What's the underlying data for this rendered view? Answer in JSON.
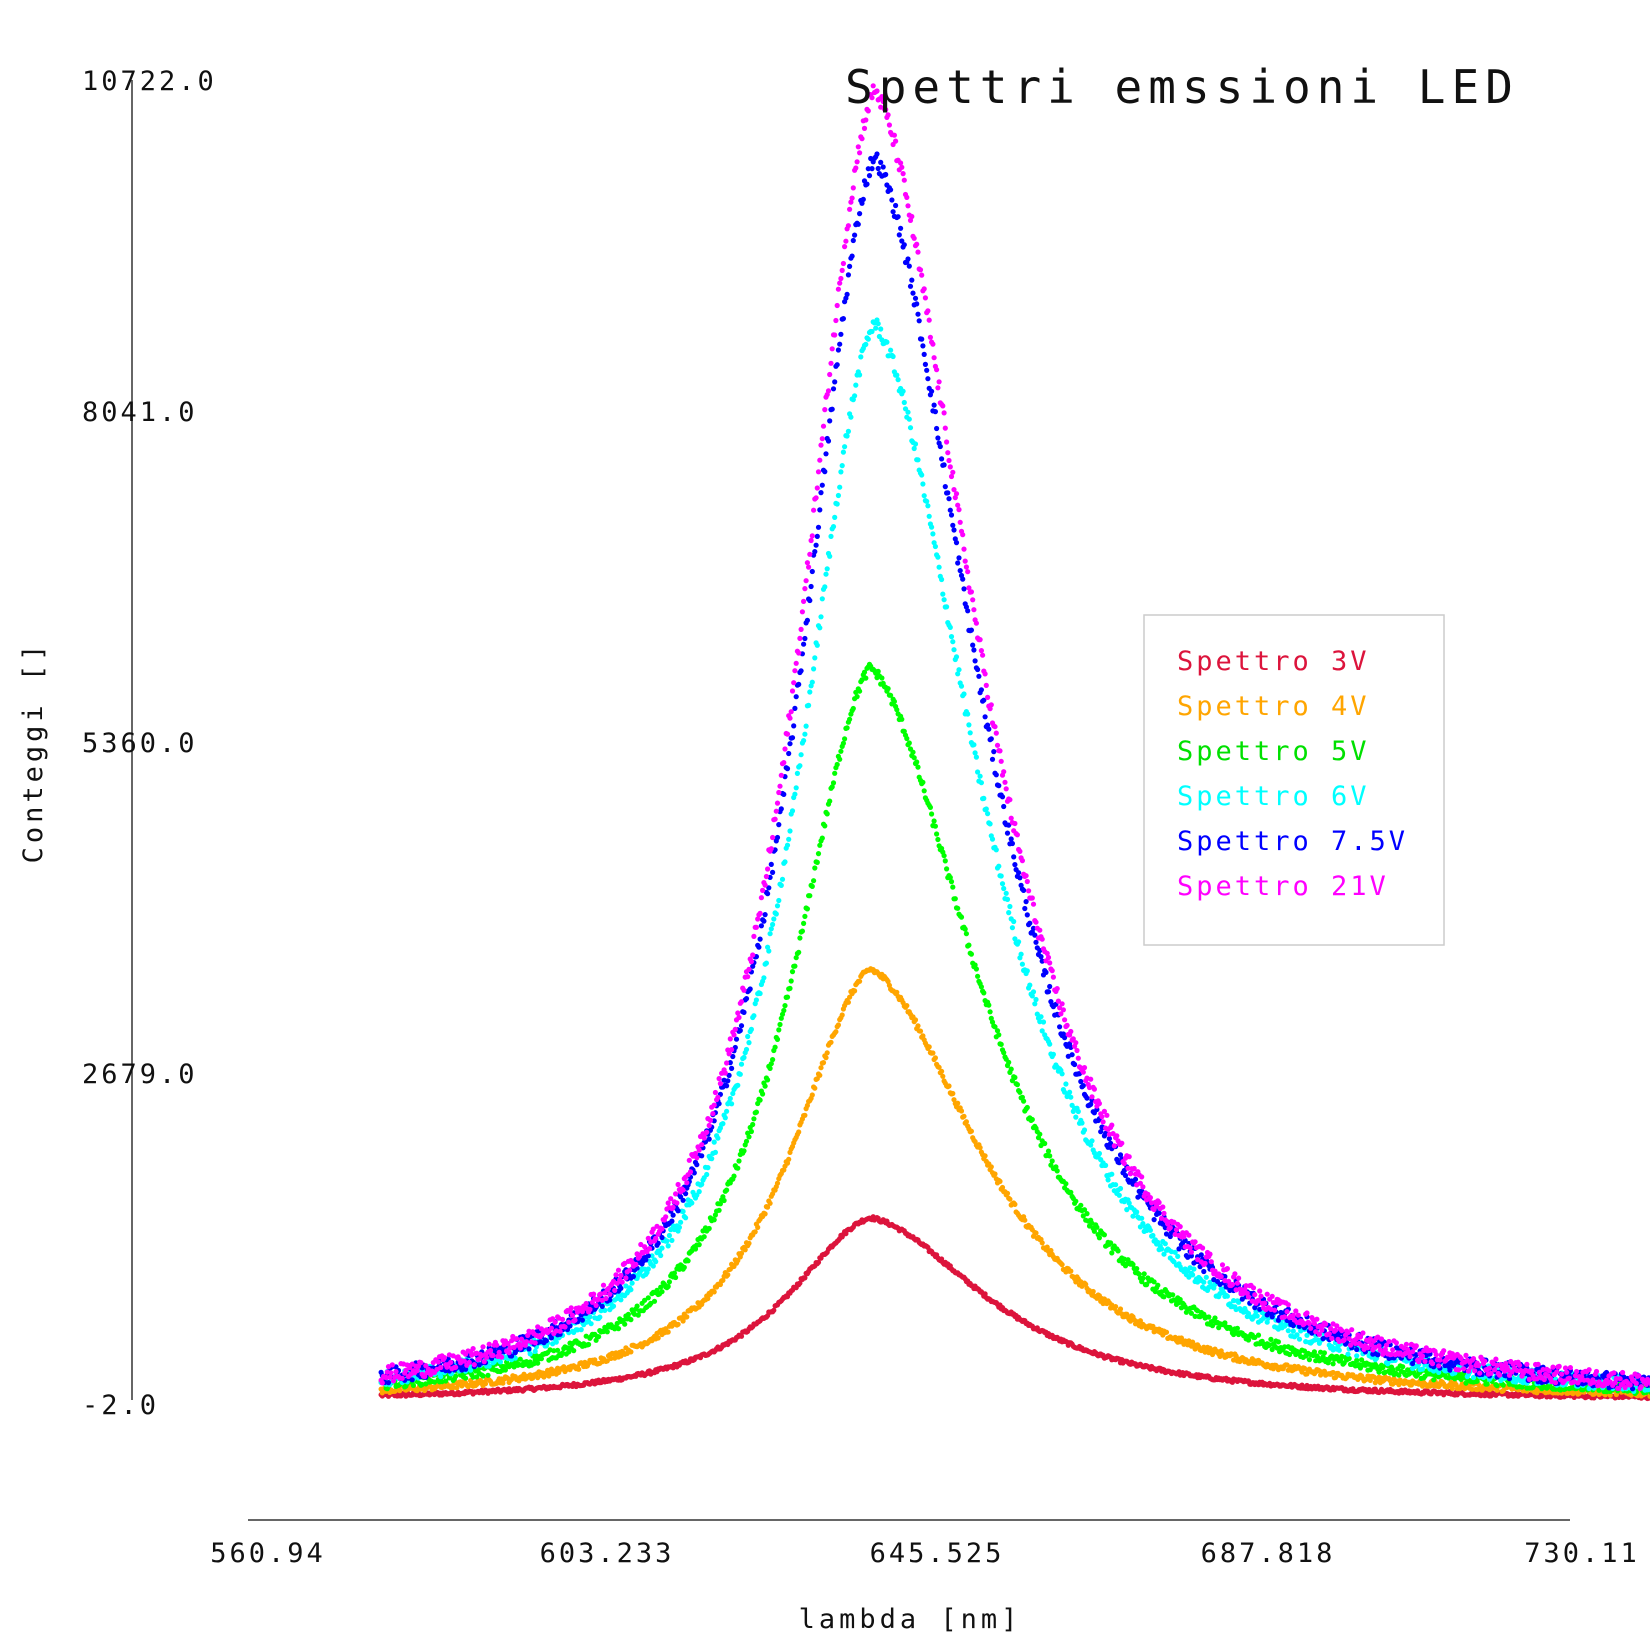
{
  "chart_data": {
    "type": "scatter",
    "title": "Spettri emssioni LED",
    "xlabel": "lambda [nm]",
    "ylabel": "Conteggi []",
    "xlim": [
      560.94,
      730.11
    ],
    "ylim": [
      -2.0,
      10722.0
    ],
    "x_ticks": [
      "560.94",
      "603.233",
      "645.525",
      "687.818",
      "730.11"
    ],
    "y_ticks": [
      "-2.0",
      "2679.0",
      "5360.0",
      "8041.0",
      "10722.0"
    ],
    "grid": false,
    "legend_position": "right",
    "x_range": [
      575.5,
      745.0
    ],
    "series": [
      {
        "name": "Spettro 3V",
        "color": "#dc143c",
        "peak_x": 638.5,
        "peak_y": 1480,
        "sigma_left": 14.5,
        "sigma_right": 20.0
      },
      {
        "name": "Spettro 4V",
        "color": "#ffa500",
        "peak_x": 638.5,
        "peak_y": 3500,
        "sigma_left": 14.0,
        "sigma_right": 19.5
      },
      {
        "name": "Spettro 5V",
        "color": "#00ff00",
        "peak_x": 638.5,
        "peak_y": 5950,
        "sigma_left": 13.8,
        "sigma_right": 19.0
      },
      {
        "name": "Spettro 6V",
        "color": "#00ffff",
        "peak_x": 639.0,
        "peak_y": 8750,
        "sigma_left": 13.5,
        "sigma_right": 18.5
      },
      {
        "name": "Spettro 7.5V",
        "color": "#0000ff",
        "peak_x": 639.0,
        "peak_y": 10100,
        "sigma_left": 13.3,
        "sigma_right": 18.5
      },
      {
        "name": "Spettro 21V",
        "color": "#ff00ff",
        "peak_x": 639.0,
        "peak_y": 10650,
        "sigma_left": 13.3,
        "sigma_right": 18.5
      }
    ]
  }
}
